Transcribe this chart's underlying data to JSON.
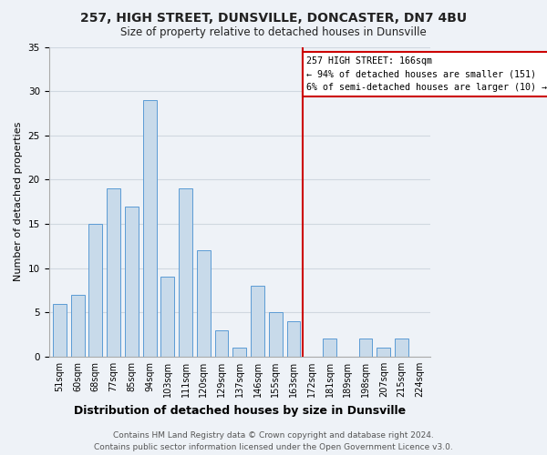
{
  "title": "257, HIGH STREET, DUNSVILLE, DONCASTER, DN7 4BU",
  "subtitle": "Size of property relative to detached houses in Dunsville",
  "xlabel": "Distribution of detached houses by size in Dunsville",
  "ylabel": "Number of detached properties",
  "footer_line1": "Contains HM Land Registry data © Crown copyright and database right 2024.",
  "footer_line2": "Contains public sector information licensed under the Open Government Licence v3.0.",
  "bin_labels": [
    "51sqm",
    "60sqm",
    "68sqm",
    "77sqm",
    "85sqm",
    "94sqm",
    "103sqm",
    "111sqm",
    "120sqm",
    "129sqm",
    "137sqm",
    "146sqm",
    "155sqm",
    "163sqm",
    "172sqm",
    "181sqm",
    "189sqm",
    "198sqm",
    "207sqm",
    "215sqm",
    "224sqm"
  ],
  "bar_values": [
    6,
    7,
    15,
    19,
    17,
    29,
    9,
    19,
    12,
    3,
    1,
    8,
    5,
    4,
    0,
    2,
    0,
    2,
    1,
    2,
    0
  ],
  "bar_color": "#c8daea",
  "bar_edge_color": "#5b9bd5",
  "highlight_bar_index": 13,
  "highlight_line_color": "#cc0000",
  "annotation_line1": "257 HIGH STREET: 166sqm",
  "annotation_line2": "← 94% of detached houses are smaller (151)",
  "annotation_line3": "6% of semi-detached houses are larger (10) →",
  "annotation_box_color": "#ffffff",
  "annotation_box_edge_color": "#cc0000",
  "ylim": [
    0,
    35
  ],
  "yticks": [
    0,
    5,
    10,
    15,
    20,
    25,
    30,
    35
  ],
  "grid_color": "#d0d8e0",
  "background_color": "#eef2f7",
  "title_fontsize": 10,
  "subtitle_fontsize": 8.5,
  "ylabel_fontsize": 8,
  "xlabel_fontsize": 9,
  "tick_fontsize": 7,
  "footer_fontsize": 6.5
}
